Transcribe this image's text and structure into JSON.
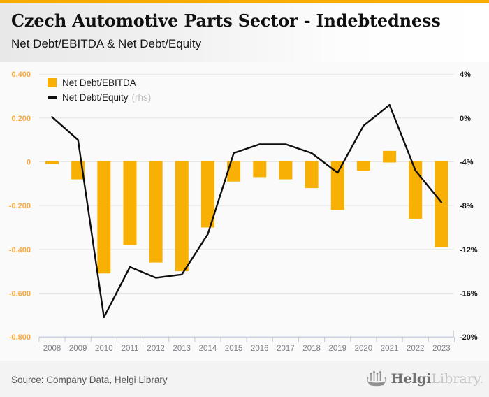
{
  "header": {
    "title": "Czech Automotive Parts Sector - Indebtedness",
    "subtitle": "Net Debt/EBITDA & Net Debt/Equity"
  },
  "legend": {
    "items": [
      {
        "label": "Net Debt/EBITDA",
        "swatch": "orange-square"
      },
      {
        "label": "Net Debt/Equity",
        "suffix": "(rhs)",
        "swatch": "black-line"
      }
    ]
  },
  "chart_data": {
    "type": "bar",
    "title": "Czech Automotive Parts Sector - Indebtedness",
    "subtitle": "Net Debt/EBITDA & Net Debt/Equity",
    "categories": [
      "2008",
      "2009",
      "2010",
      "2011",
      "2012",
      "2013",
      "2014",
      "2015",
      "2016",
      "2017",
      "2018",
      "2019",
      "2020",
      "2021",
      "2022",
      "2023"
    ],
    "series": [
      {
        "name": "Net Debt/EBITDA",
        "type": "bar",
        "axis": "left",
        "color": "#F9B005",
        "values": [
          -0.01,
          -0.08,
          -0.51,
          -0.38,
          -0.46,
          -0.5,
          -0.3,
          -0.09,
          -0.07,
          -0.08,
          -0.12,
          -0.22,
          -0.04,
          0.05,
          -0.26,
          -0.39
        ]
      },
      {
        "name": "Net Debt/Equity (rhs)",
        "type": "line",
        "axis": "right",
        "color": "#0E0E0E",
        "values": [
          0.1,
          -2.0,
          -18.2,
          -13.6,
          -14.6,
          -14.3,
          -10.6,
          -3.2,
          -2.4,
          -2.4,
          -3.2,
          -5.0,
          -0.7,
          1.2,
          -4.8,
          -7.7
        ]
      }
    ],
    "left_axis": {
      "tick_labels": [
        "0.400",
        "0.200",
        "0",
        "-0.200",
        "-0.400",
        "-0.600",
        "-0.800"
      ],
      "tick_values": [
        0.4,
        0.2,
        0,
        -0.2,
        -0.4,
        -0.6,
        -0.8
      ],
      "min": -0.8,
      "max": 0.4,
      "label_color": "#F9A93D"
    },
    "right_axis": {
      "tick_labels": [
        "4%",
        "0%",
        "-4%",
        "-8%",
        "-12%",
        "-16%",
        "-20%"
      ],
      "tick_values": [
        4,
        0,
        -4,
        -8,
        -12,
        -16,
        -20
      ],
      "min": -20,
      "max": 4,
      "label_color": "#1A1A1A"
    },
    "grid": true,
    "legend_position": "top-left"
  },
  "footer": {
    "source": "Source: Company Data, Helgi Library",
    "logo": {
      "icon": "helgi-ship-icon",
      "primary": "Helgi",
      "secondary": "Library."
    }
  }
}
